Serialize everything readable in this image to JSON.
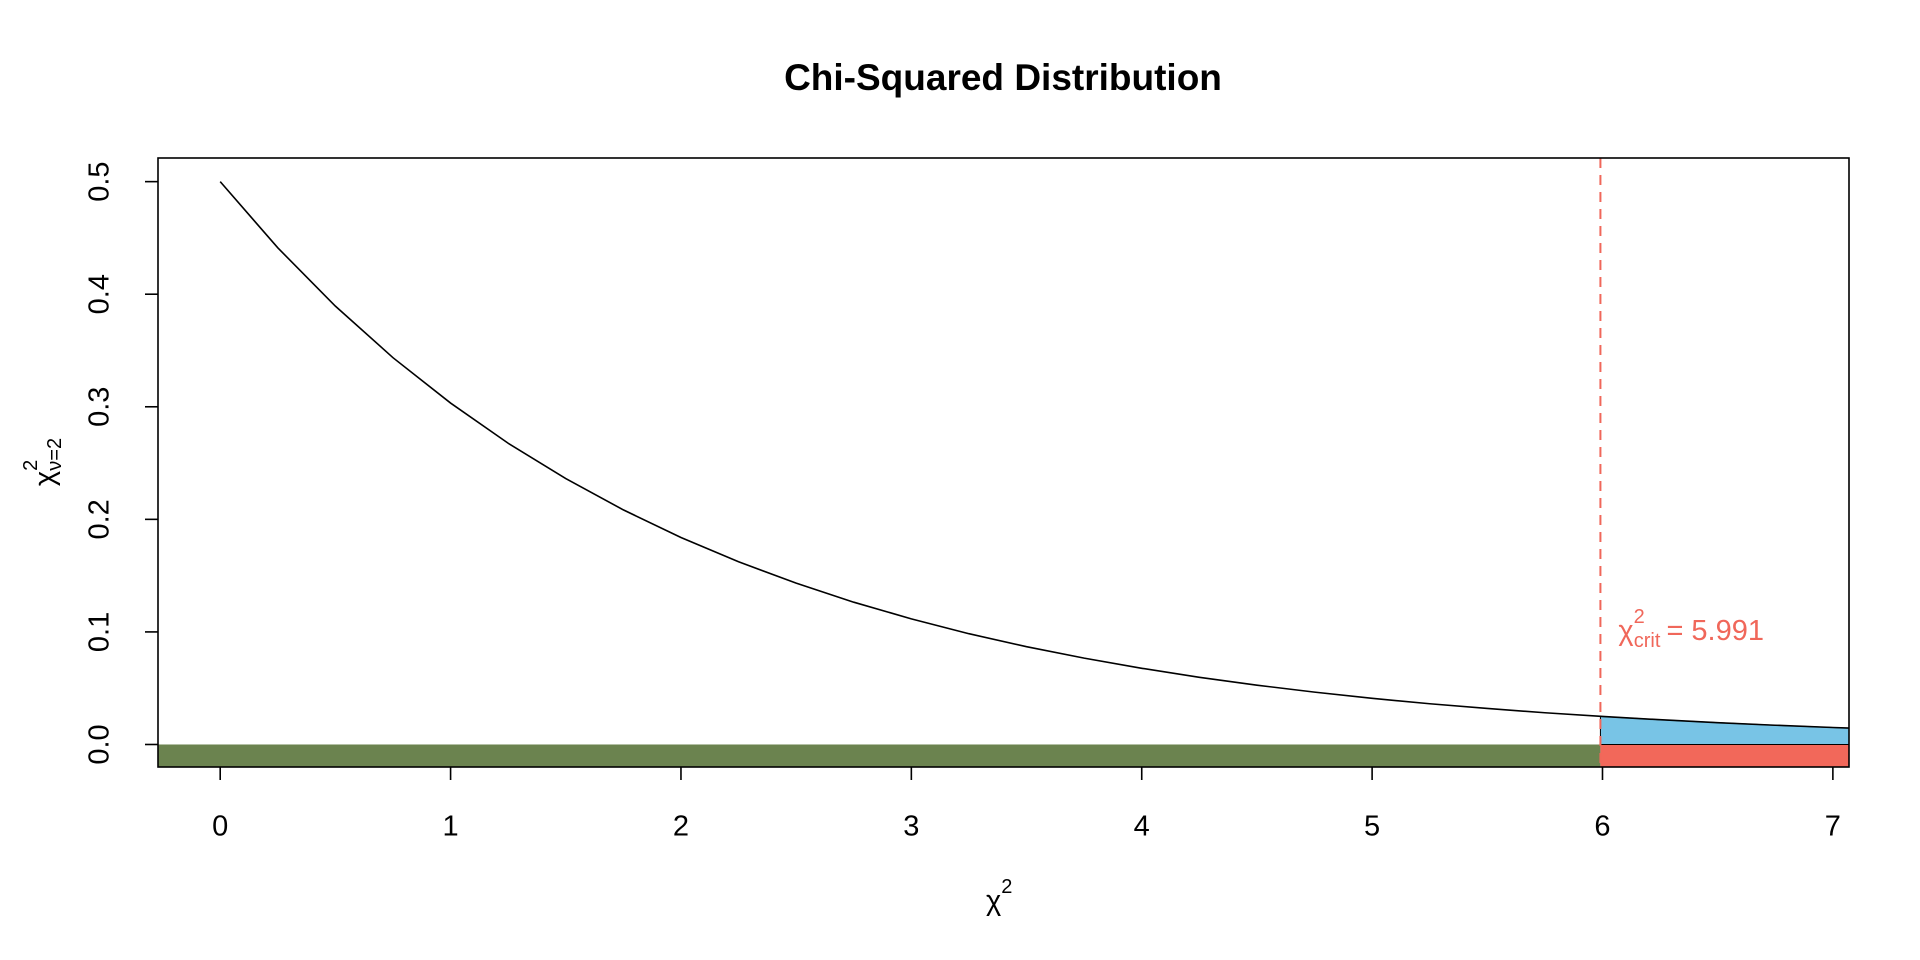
{
  "chart_data": {
    "type": "density",
    "title": "Chi-Squared Distribution",
    "x_label": {
      "symbol": "χ",
      "sup": "2"
    },
    "y_label": {
      "symbol": "χ",
      "sup": "2",
      "sub": "ν=2"
    },
    "x": [
      0,
      0.25,
      0.5,
      0.75,
      1,
      1.25,
      1.5,
      1.75,
      2,
      2.25,
      2.5,
      2.75,
      3,
      3.25,
      3.5,
      3.75,
      4,
      4.25,
      4.5,
      4.75,
      5,
      5.25,
      5.5,
      5.75,
      6,
      6.25,
      6.5,
      6.75,
      7,
      7.07
    ],
    "values": [
      0.5,
      0.4412,
      0.3894,
      0.3436,
      0.3033,
      0.2676,
      0.2362,
      0.2084,
      0.1839,
      0.1623,
      0.1433,
      0.1264,
      0.1116,
      0.0984,
      0.0869,
      0.0767,
      0.0677,
      0.0597,
      0.0527,
      0.0465,
      0.041,
      0.0362,
      0.032,
      0.0282,
      0.0249,
      0.022,
      0.0194,
      0.0171,
      0.0151,
      0.0146
    ],
    "color": "#000000",
    "critical_value": 5.991,
    "critical_color": "#f0675a",
    "annotation": {
      "symbol": "χ",
      "sup": "2",
      "sub": "crit",
      "text": "= 5.991"
    },
    "accept_color": "#6b834f",
    "reject_color": "#f2685a",
    "tail_color": "#78c4e6",
    "xlim": [
      -0.27,
      7.07
    ],
    "ylim": [
      -0.02,
      0.521
    ],
    "xticks": [
      0,
      1,
      2,
      3,
      4,
      5,
      6,
      7
    ],
    "yticks": [
      {
        "value": 0,
        "label": "0.0"
      },
      0.1,
      0.2,
      0.3,
      0.4,
      0.5
    ]
  }
}
